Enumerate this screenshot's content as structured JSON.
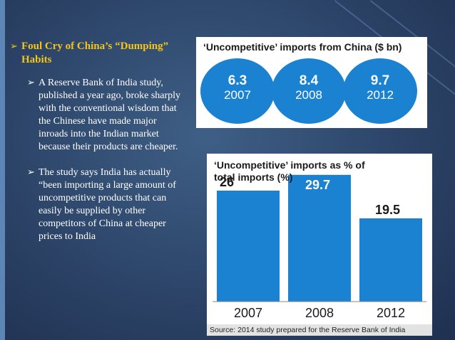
{
  "left": {
    "heading": "Foul Cry of China’s “Dumping” Habits",
    "bullets": [
      "A Reserve Bank of India study, published a year ago, broke sharply with the conventional wisdom that the Chinese have made major inroads into the Indian market because their products are cheaper.",
      "The study says India has actually “been importing a large amount of uncompetitive products that can easily be supplied by other competitors of China at cheaper prices to India"
    ]
  },
  "top_panel": {
    "title": "‘Uncompetitive’ imports from China ($ bn)",
    "items": [
      {
        "value": "6.3",
        "year": "2007"
      },
      {
        "value": "8.4",
        "year": "2008"
      },
      {
        "value": "9.7",
        "year": "2012"
      }
    ]
  },
  "chart_data": {
    "type": "bar",
    "title": "‘Uncompetitive’ imports as % of total imports (%)",
    "categories": [
      "2007",
      "2008",
      "2012"
    ],
    "values": [
      26,
      29.7,
      19.5
    ],
    "value_labels": [
      "26",
      "29.7",
      "19.5"
    ],
    "ylim": [
      0,
      32
    ],
    "bar_color": "#1b82d2",
    "source": "Source: 2014 study prepared for the Reserve Bank of India"
  },
  "colors": {
    "heading": "#f5c518",
    "bubble": "#1b82d2",
    "background": "#2c4468"
  }
}
